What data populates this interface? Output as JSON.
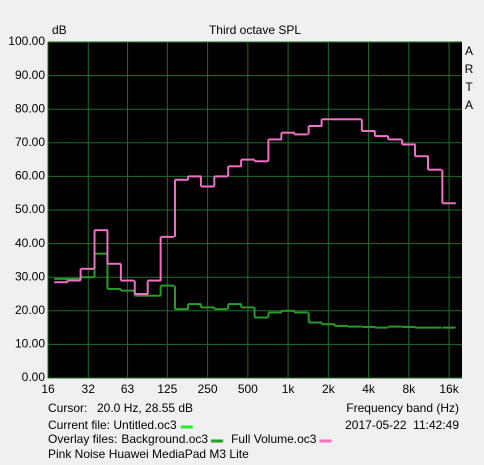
{
  "chart_data": {
    "type": "step",
    "title": "Third octave SPL",
    "y_label": "dB",
    "x_label": "Frequency band (Hz)",
    "brand": "ARTA",
    "cursor_label": "Cursor:",
    "cursor_value": "20.0 Hz, 28.55 dB",
    "current_file": {
      "label": "Current file: Untitled.oc3",
      "color": "#22ee22"
    },
    "overlay_label": "Overlay files:",
    "timestamp": "2017-05-22  11:42:49",
    "note": "Pink Noise Huawei MediaPad M3 Lite",
    "x_scale": "log",
    "x": [
      20,
      25,
      31.5,
      40,
      50,
      63,
      80,
      100,
      125,
      160,
      200,
      250,
      315,
      400,
      500,
      630,
      800,
      1000,
      1250,
      1600,
      2000,
      2500,
      3150,
      4000,
      5000,
      6300,
      8000,
      10000,
      12500,
      16000
    ],
    "series": [
      {
        "name": "Background.oc3",
        "color": "#2a9a2a",
        "values": [
          29.5,
          29.5,
          30,
          37,
          26.5,
          26,
          24.5,
          24.5,
          27.5,
          20.5,
          22,
          21,
          20.5,
          22,
          21,
          18,
          19.5,
          20,
          19.5,
          16.5,
          16,
          15.5,
          15.3,
          15.2,
          15,
          15.3,
          15.2,
          15,
          15,
          15
        ]
      },
      {
        "name": "Full Volume.oc3",
        "color": "#f070c8",
        "values": [
          28.5,
          29,
          32.5,
          44,
          34,
          29,
          25,
          29,
          42,
          59,
          60,
          57,
          60,
          63,
          65,
          64.5,
          71,
          73,
          72.5,
          75,
          77,
          77,
          77,
          73.5,
          72,
          71,
          69.5,
          66,
          62,
          52
        ]
      }
    ],
    "xlim": [
      16,
      20000
    ],
    "xticks": [
      16,
      32,
      63,
      125,
      250,
      500,
      {
        "value": 1000,
        "label": "1k"
      },
      {
        "value": 2000,
        "label": "2k"
      },
      {
        "value": 4000,
        "label": "4k"
      },
      {
        "value": 8000,
        "label": "8k"
      },
      {
        "value": 16000,
        "label": "16k"
      }
    ],
    "ylim": [
      0,
      100
    ],
    "yticks": [
      {
        "value": 0,
        "label": "0.00"
      },
      {
        "value": 10,
        "label": "10.00"
      },
      {
        "value": 20,
        "label": "20.00"
      },
      {
        "value": 30,
        "label": "30.00"
      },
      {
        "value": 40,
        "label": "40.00"
      },
      {
        "value": 50,
        "label": "50.00"
      },
      {
        "value": 60,
        "label": "60.00"
      },
      {
        "value": 70,
        "label": "70.00"
      },
      {
        "value": 80,
        "label": "80.00"
      },
      {
        "value": 90,
        "label": "90.00"
      },
      {
        "value": 100,
        "label": "100.00"
      }
    ],
    "grid": true,
    "grid_color": "#1f6e2a",
    "plot_background": "#000000"
  }
}
